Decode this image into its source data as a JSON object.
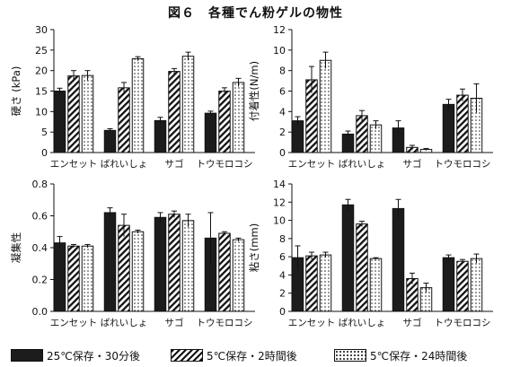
{
  "figure": {
    "title": "図６　各種でん粉ゲルの物性"
  },
  "legend": [
    {
      "label": "25℃保存・30分後",
      "pattern": "solid"
    },
    {
      "label": "5℃保存・2時間後",
      "pattern": "hatch"
    },
    {
      "label": "5℃保存・24時間後",
      "pattern": "dot"
    }
  ],
  "chart_data": [
    {
      "type": "bar",
      "ylabel": "硬さ (kPa)",
      "ylim": [
        0,
        30
      ],
      "yticks": [
        0,
        5,
        10,
        15,
        20,
        25,
        30
      ],
      "categories": [
        "エンセット",
        "ばれいしょ",
        "サゴ",
        "トウモロコシ"
      ],
      "series": [
        {
          "name": "25℃保存・30分後",
          "values": [
            15.0,
            5.4,
            7.8,
            9.6
          ],
          "errors": [
            0.7,
            0.4,
            0.8,
            0.5
          ]
        },
        {
          "name": "5℃保存・2時間後",
          "values": [
            18.7,
            15.8,
            19.8,
            15.0
          ],
          "errors": [
            1.3,
            1.3,
            0.7,
            0.8
          ]
        },
        {
          "name": "5℃保存・24時間後",
          "values": [
            18.8,
            22.9,
            23.5,
            17.1
          ],
          "errors": [
            1.2,
            0.5,
            1.0,
            1.0
          ]
        }
      ]
    },
    {
      "type": "bar",
      "ylabel": "付着性(N/m)",
      "ylim": [
        0,
        12
      ],
      "yticks": [
        0,
        2,
        4,
        6,
        8,
        10,
        12
      ],
      "categories": [
        "エンセット",
        "ばれいしょ",
        "サゴ",
        "トウモロコシ"
      ],
      "series": [
        {
          "name": "25℃保存・30分後",
          "values": [
            3.1,
            1.8,
            2.4,
            4.7
          ],
          "errors": [
            0.4,
            0.3,
            0.7,
            0.5
          ]
        },
        {
          "name": "5℃保存・2時間後",
          "values": [
            7.1,
            3.6,
            0.5,
            5.6
          ],
          "errors": [
            1.3,
            0.5,
            0.2,
            0.6
          ]
        },
        {
          "name": "5℃保存・24時間後",
          "values": [
            9.0,
            2.7,
            0.3,
            5.3
          ],
          "errors": [
            0.8,
            0.4,
            0.1,
            1.4
          ]
        }
      ]
    },
    {
      "type": "bar",
      "ylabel": "凝集性",
      "ylim": [
        0,
        0.8
      ],
      "yticks": [
        "0.0",
        "0.2",
        "0.4",
        "0.6",
        "0.8"
      ],
      "categories": [
        "エンセット",
        "ばれいしょ",
        "サゴ",
        "トウモロコシ"
      ],
      "series": [
        {
          "name": "25℃保存・30分後",
          "values": [
            0.43,
            0.62,
            0.59,
            0.46
          ],
          "errors": [
            0.04,
            0.03,
            0.03,
            0.16
          ]
        },
        {
          "name": "5℃保存・2時間後",
          "values": [
            0.41,
            0.54,
            0.61,
            0.49
          ],
          "errors": [
            0.01,
            0.07,
            0.02,
            0.01
          ]
        },
        {
          "name": "5℃保存・24時間後",
          "values": [
            0.41,
            0.5,
            0.57,
            0.45
          ],
          "errors": [
            0.01,
            0.01,
            0.04,
            0.01
          ]
        }
      ]
    },
    {
      "type": "bar",
      "ylabel": "粘さ(mm)",
      "ylim": [
        0,
        14
      ],
      "yticks": [
        0,
        2,
        4,
        6,
        8,
        10,
        12,
        14
      ],
      "categories": [
        "エンセット",
        "ばれいしょ",
        "サゴ",
        "トウモロコシ"
      ],
      "series": [
        {
          "name": "25℃保存・30分後",
          "values": [
            5.9,
            11.7,
            11.3,
            5.9
          ],
          "errors": [
            1.3,
            0.6,
            1.0,
            0.3
          ]
        },
        {
          "name": "5℃保存・2時間後",
          "values": [
            6.1,
            9.6,
            3.6,
            5.5
          ],
          "errors": [
            0.4,
            0.3,
            0.6,
            0.2
          ]
        },
        {
          "name": "5℃保存・24時間後",
          "values": [
            6.2,
            5.8,
            2.6,
            5.8
          ],
          "errors": [
            0.3,
            0.1,
            0.5,
            0.5
          ]
        }
      ]
    }
  ]
}
